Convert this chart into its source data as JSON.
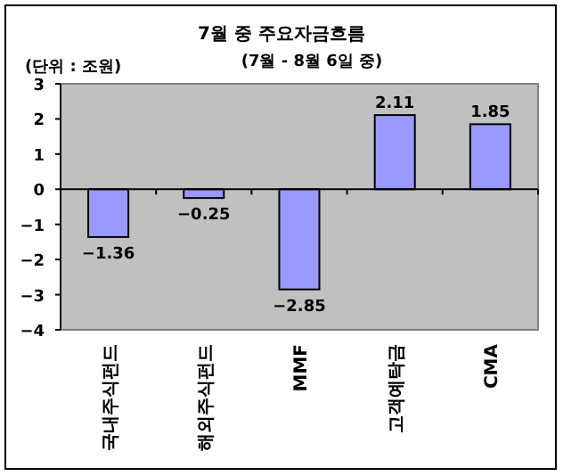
{
  "chart_data": {
    "type": "bar",
    "title": "7월 중 주요자금흐름",
    "subtitle": "(7월 - 8월 6일 중)",
    "annotations": [
      "(단위 : 조원)"
    ],
    "categories": [
      "국내주식펀드",
      "해외주식펀드",
      "MMF",
      "고객예탁금",
      "CMA"
    ],
    "values": [
      -1.36,
      -0.25,
      -2.85,
      2.11,
      1.85
    ],
    "color": "#9999ff",
    "ylim": [
      -4,
      3
    ],
    "yticks": [
      -4,
      -3,
      -2,
      -1,
      0,
      1,
      2,
      3
    ],
    "data_labels": true
  }
}
